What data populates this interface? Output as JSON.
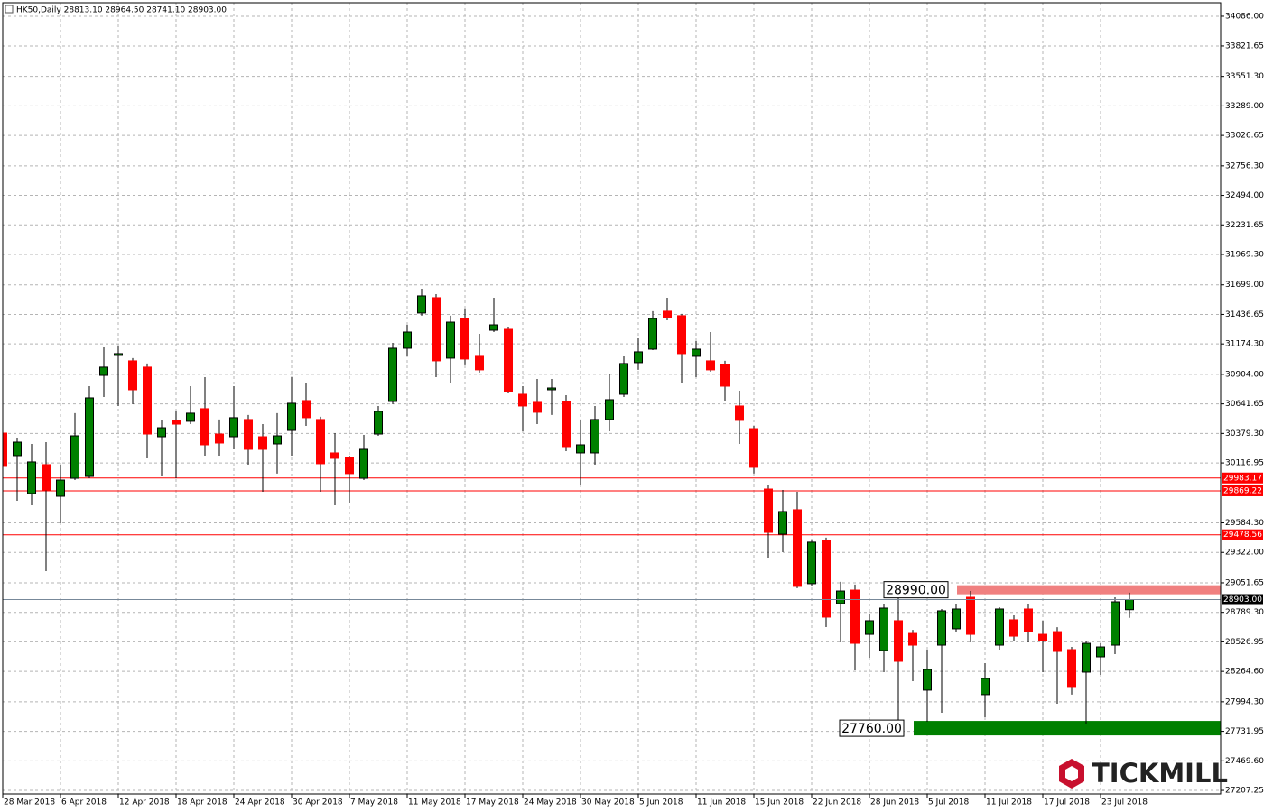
{
  "chart_data": {
    "type": "candlestick",
    "title": "HK50,Daily  28813.10 28964.50 28741.10 28903.00",
    "categories": [
      "28 Mar 2018",
      null,
      null,
      null,
      "6 Apr 2018",
      null,
      null,
      null,
      "12 Apr 2018",
      null,
      null,
      null,
      "18 Apr 2018",
      null,
      null,
      null,
      "24 Apr 2018",
      null,
      null,
      null,
      "30 Apr 2018",
      null,
      null,
      null,
      "7 May 2018",
      null,
      null,
      null,
      "11 May 2018",
      null,
      null,
      null,
      "17 May 2018",
      null,
      null,
      null,
      "24 May 2018",
      null,
      null,
      null,
      "30 May 2018",
      null,
      null,
      null,
      "5 Jun 2018",
      null,
      null,
      null,
      "11 Jun 2018",
      null,
      null,
      null,
      "15 Jun 2018",
      null,
      null,
      null,
      "22 Jun 2018",
      null,
      null,
      null,
      "28 Jun 2018",
      null,
      null,
      null,
      "5 Jul 2018",
      null,
      null,
      null,
      "11 Jul 2018",
      null,
      null,
      null,
      "17 Jul 2018",
      null,
      null,
      null,
      "23 Jul 2018",
      null,
      null
    ],
    "open": [
      30382,
      30182,
      29845,
      30102,
      29821,
      29981,
      29997,
      30895,
      31072,
      31024,
      30968,
      30350,
      30495,
      30487,
      30599,
      30374,
      30350,
      30503,
      30350,
      30286,
      30406,
      30671,
      30503,
      30206,
      30166,
      29981,
      30374,
      30663,
      31136,
      31449,
      31585,
      31048,
      31400,
      31064,
      31296,
      31304,
      30727,
      30655,
      30767,
      30663,
      30206,
      30206,
      30503,
      30727,
      31008,
      31128,
      31465,
      31425,
      31064,
      31024,
      30992,
      30623,
      30422,
      29885,
      29484,
      29701,
      29044,
      29429,
      28867,
      28987,
      28594,
      28450,
      28715,
      28602,
      28098,
      28498,
      28643,
      28923,
      28058,
      28498,
      28723,
      28819,
      28594,
      28618,
      28458,
      28258,
      28394,
      28498,
      28813.1
    ],
    "high": [
      30623,
      30342,
      30286,
      30302,
      30102,
      30559,
      30799,
      31144,
      31160,
      31048,
      31000,
      30495,
      30583,
      30799,
      30879,
      30503,
      30799,
      30543,
      30462,
      30559,
      30879,
      30823,
      30527,
      30382,
      30182,
      30366,
      30623,
      31184,
      31344,
      31665,
      31617,
      31425,
      31489,
      31264,
      31585,
      31328,
      30799,
      30863,
      30863,
      30719,
      30503,
      30623,
      30903,
      31064,
      31224,
      31465,
      31585,
      31441,
      31200,
      31280,
      31024,
      30759,
      30446,
      29917,
      29877,
      29861,
      29437,
      29453,
      29060,
      29036,
      28779,
      28867,
      28923,
      28634,
      28458,
      28819,
      28859,
      28979,
      28338,
      28835,
      28763,
      28859,
      28715,
      28658,
      28482,
      28538,
      28514,
      28923,
      28964.5
    ],
    "low": [
      29821,
      29781,
      29741,
      29156,
      29580,
      29965,
      29981,
      30703,
      30623,
      30639,
      30158,
      29997,
      29981,
      30462,
      30182,
      30182,
      30238,
      30102,
      29861,
      30022,
      30182,
      30446,
      29861,
      29741,
      29757,
      29965,
      30358,
      30639,
      31064,
      31425,
      30879,
      30823,
      30984,
      30920,
      31280,
      30735,
      30398,
      30462,
      30543,
      30222,
      29917,
      30102,
      30398,
      30703,
      30944,
      31120,
      31384,
      30823,
      30879,
      30928,
      30663,
      30286,
      30022,
      29276,
      29324,
      29004,
      29020,
      28659,
      28522,
      28274,
      28386,
      28258,
      27817,
      28178,
      27817,
      27897,
      28618,
      28522,
      27857,
      28458,
      28538,
      28522,
      28258,
      27977,
      28058,
      27801,
      28234,
      28418,
      28741.1
    ],
    "close": [
      30086,
      30302,
      30126,
      29877,
      29965,
      30358,
      30695,
      30968,
      31088,
      30767,
      30374,
      30430,
      30462,
      30559,
      30278,
      30294,
      30519,
      30238,
      30238,
      30358,
      30647,
      30519,
      30110,
      30158,
      30022,
      30238,
      30575,
      31136,
      31280,
      31601,
      31024,
      31368,
      31040,
      30944,
      31344,
      30751,
      30623,
      30567,
      30783,
      30262,
      30278,
      30503,
      30679,
      31000,
      31104,
      31400,
      31409,
      31088,
      31128,
      30944,
      30799,
      30495,
      30078,
      29500,
      29685,
      29020,
      29413,
      28747,
      28979,
      28514,
      28715,
      28827,
      28354,
      28498,
      28282,
      28803,
      28819,
      28594,
      28202,
      28819,
      28578,
      28618,
      28538,
      28442,
      28122,
      28514,
      28482,
      28883,
      28903
    ],
    "up_color": "#008000",
    "down_color": "#ff0000",
    "ylim": [
      27175.5,
      34206
    ],
    "yticks": [
      {
        "value": 34086,
        "label": "34086.00"
      },
      {
        "value": 33821.65,
        "label": "33821.65"
      },
      {
        "value": 33551.3,
        "label": "33551.30"
      },
      {
        "value": 33289,
        "label": "33289.00"
      },
      {
        "value": 33026.65,
        "label": "33026.65"
      },
      {
        "value": 32756.3,
        "label": "32756.30"
      },
      {
        "value": 32494,
        "label": "32494.00"
      },
      {
        "value": 32231.65,
        "label": "32231.65"
      },
      {
        "value": 31969.3,
        "label": "31969.30"
      },
      {
        "value": 31699,
        "label": "31699.00"
      },
      {
        "value": 31436.65,
        "label": "31436.65"
      },
      {
        "value": 31174.3,
        "label": "31174.30"
      },
      {
        "value": 30904,
        "label": "30904.00"
      },
      {
        "value": 30641.65,
        "label": "30641.65"
      },
      {
        "value": 30379.3,
        "label": "30379.30"
      },
      {
        "value": 30116.95,
        "label": "30116.95"
      },
      {
        "value": 29584.3,
        "label": "29584.30"
      },
      {
        "value": 29322,
        "label": "29322.00"
      },
      {
        "value": 29051.65,
        "label": "29051.65"
      },
      {
        "value": 28789.3,
        "label": "28789.30"
      },
      {
        "value": 28526.95,
        "label": "28526.95"
      },
      {
        "value": 28264.6,
        "label": "28264.60"
      },
      {
        "value": 27994.3,
        "label": "27994.30"
      },
      {
        "value": 27731.95,
        "label": "27731.95"
      },
      {
        "value": 27469.6,
        "label": "27469.60"
      },
      {
        "value": 27207.25,
        "label": "27207.25"
      }
    ],
    "grid": true,
    "hlines": [
      {
        "value": 29983.17,
        "color": "#ff0000"
      },
      {
        "value": 29869.22,
        "color": "#ff0000"
      },
      {
        "value": 29478.56,
        "color": "#ff0000"
      }
    ],
    "current_price": {
      "value": 28903,
      "label": "28903.00",
      "color": "#778899"
    },
    "zones": [
      {
        "value": 28990,
        "label": "28990.00",
        "color": "#f08080"
      },
      {
        "value": 27760,
        "label": "27760.00",
        "color": "#008000"
      }
    ],
    "watermark": "TICKMILL"
  }
}
